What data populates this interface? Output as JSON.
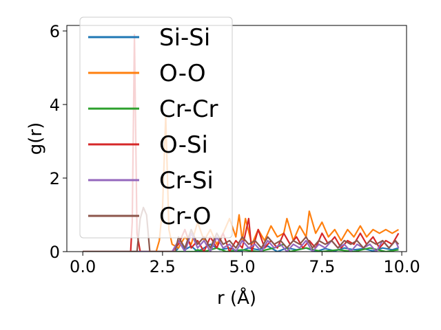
{
  "chart_data": {
    "type": "line",
    "title": "",
    "xlabel": "r (Å)",
    "ylabel": "g(r)",
    "xlim": [
      -0.5,
      10.15
    ],
    "ylim": [
      0,
      6.15
    ],
    "x_ticks": [
      0.0,
      2.5,
      5.0,
      7.5,
      10.0
    ],
    "x_tick_labels": [
      "0.0",
      "2.5",
      "5.0",
      "7.5",
      "10.0"
    ],
    "y_ticks": [
      0,
      2,
      4,
      6
    ],
    "y_tick_labels": [
      "0",
      "2",
      "4",
      "6"
    ],
    "grid": false,
    "legend_position": "top-left",
    "series": [
      {
        "name": "Si-Si",
        "color": "#1f77b4",
        "points": [
          [
            0,
            0
          ],
          [
            2.9,
            0
          ],
          [
            3.0,
            0.1
          ],
          [
            3.1,
            0.25
          ],
          [
            3.2,
            0.05
          ],
          [
            3.4,
            0.15
          ],
          [
            3.6,
            0.0
          ],
          [
            3.8,
            0.1
          ],
          [
            4.0,
            0.2
          ],
          [
            4.3,
            0.05
          ],
          [
            4.6,
            0.1
          ],
          [
            4.9,
            0.0
          ],
          [
            5.2,
            0.1
          ],
          [
            5.5,
            0.05
          ],
          [
            5.8,
            0.15
          ],
          [
            6.1,
            0.0
          ],
          [
            6.4,
            0.1
          ],
          [
            6.7,
            0.05
          ],
          [
            7.0,
            0.1
          ],
          [
            7.3,
            0.0
          ],
          [
            7.6,
            0.08
          ],
          [
            7.9,
            0.02
          ],
          [
            8.2,
            0.1
          ],
          [
            8.5,
            0.05
          ],
          [
            8.8,
            0.08
          ],
          [
            9.1,
            0.02
          ],
          [
            9.4,
            0.1
          ],
          [
            9.7,
            0.05
          ],
          [
            9.9,
            0.1
          ]
        ]
      },
      {
        "name": "O-O",
        "color": "#ff7f0e",
        "points": [
          [
            0,
            0
          ],
          [
            2.3,
            0
          ],
          [
            2.4,
            0.3
          ],
          [
            2.5,
            1.2
          ],
          [
            2.6,
            3.7
          ],
          [
            2.7,
            0.6
          ],
          [
            2.8,
            0.2
          ],
          [
            3.0,
            0.1
          ],
          [
            3.2,
            0.4
          ],
          [
            3.4,
            0.2
          ],
          [
            3.6,
            0.8
          ],
          [
            3.8,
            0.3
          ],
          [
            4.0,
            0.6
          ],
          [
            4.2,
            0.2
          ],
          [
            4.4,
            0.5
          ],
          [
            4.6,
            0.9
          ],
          [
            4.8,
            0.4
          ],
          [
            4.9,
            1.0
          ],
          [
            5.0,
            0.3
          ],
          [
            5.1,
            0.9
          ],
          [
            5.3,
            0.2
          ],
          [
            5.5,
            0.6
          ],
          [
            5.7,
            0.3
          ],
          [
            5.9,
            0.7
          ],
          [
            6.1,
            0.4
          ],
          [
            6.3,
            0.5
          ],
          [
            6.4,
            0.9
          ],
          [
            6.6,
            0.3
          ],
          [
            6.8,
            0.7
          ],
          [
            7.0,
            0.4
          ],
          [
            7.1,
            1.1
          ],
          [
            7.3,
            0.5
          ],
          [
            7.5,
            0.8
          ],
          [
            7.7,
            0.4
          ],
          [
            7.9,
            0.6
          ],
          [
            8.1,
            0.3
          ],
          [
            8.3,
            0.6
          ],
          [
            8.5,
            0.4
          ],
          [
            8.7,
            0.7
          ],
          [
            8.9,
            0.4
          ],
          [
            9.1,
            0.6
          ],
          [
            9.3,
            0.5
          ],
          [
            9.5,
            0.6
          ],
          [
            9.7,
            0.5
          ],
          [
            9.9,
            0.6
          ]
        ]
      },
      {
        "name": "Cr-Cr",
        "color": "#2ca02c",
        "points": [
          [
            0,
            0
          ],
          [
            3.5,
            0
          ],
          [
            3.6,
            0.05
          ],
          [
            3.8,
            0.0
          ],
          [
            4.2,
            0.1
          ],
          [
            4.5,
            0.0
          ],
          [
            5.0,
            0.05
          ],
          [
            5.5,
            0.0
          ],
          [
            6.0,
            0.1
          ],
          [
            6.3,
            0.2
          ],
          [
            6.5,
            0.0
          ],
          [
            7.0,
            0.1
          ],
          [
            7.5,
            0.0
          ],
          [
            8.0,
            0.05
          ],
          [
            8.5,
            0.0
          ],
          [
            9.0,
            0.1
          ],
          [
            9.5,
            0.0
          ],
          [
            9.9,
            0.05
          ]
        ]
      },
      {
        "name": "O-Si",
        "color": "#d62728",
        "points": [
          [
            0,
            0
          ],
          [
            1.5,
            0
          ],
          [
            1.55,
            0.8
          ],
          [
            1.62,
            5.9
          ],
          [
            1.7,
            0.5
          ],
          [
            1.8,
            0.0
          ],
          [
            2.8,
            0.0
          ],
          [
            3.0,
            0.2
          ],
          [
            3.2,
            0.6
          ],
          [
            3.4,
            0.1
          ],
          [
            3.6,
            0.3
          ],
          [
            3.8,
            0.0
          ],
          [
            4.0,
            0.4
          ],
          [
            4.2,
            0.1
          ],
          [
            4.4,
            0.5
          ],
          [
            4.6,
            0.0
          ],
          [
            4.8,
            0.3
          ],
          [
            5.0,
            0.1
          ],
          [
            5.2,
            0.9
          ],
          [
            5.3,
            0.0
          ],
          [
            5.5,
            0.6
          ],
          [
            5.7,
            0.1
          ],
          [
            5.9,
            0.3
          ],
          [
            6.1,
            0.1
          ],
          [
            6.3,
            0.5
          ],
          [
            6.5,
            0.2
          ],
          [
            6.7,
            0.4
          ],
          [
            6.9,
            0.1
          ],
          [
            7.1,
            0.3
          ],
          [
            7.3,
            0.1
          ],
          [
            7.5,
            0.5
          ],
          [
            7.7,
            0.2
          ],
          [
            7.9,
            0.4
          ],
          [
            8.1,
            0.1
          ],
          [
            8.3,
            0.3
          ],
          [
            8.5,
            0.2
          ],
          [
            8.7,
            0.5
          ],
          [
            8.9,
            0.2
          ],
          [
            9.1,
            0.4
          ],
          [
            9.3,
            0.1
          ],
          [
            9.5,
            0.3
          ],
          [
            9.7,
            0.2
          ],
          [
            9.9,
            0.5
          ]
        ]
      },
      {
        "name": "Cr-Si",
        "color": "#9467bd",
        "points": [
          [
            0,
            0
          ],
          [
            2.8,
            0
          ],
          [
            3.0,
            0.3
          ],
          [
            3.2,
            0.0
          ],
          [
            3.4,
            0.5
          ],
          [
            3.6,
            0.1
          ],
          [
            3.8,
            0.3
          ],
          [
            4.0,
            0.0
          ],
          [
            4.2,
            0.4
          ],
          [
            4.4,
            0.1
          ],
          [
            4.6,
            0.2
          ],
          [
            4.8,
            0.0
          ],
          [
            5.0,
            0.3
          ],
          [
            5.2,
            0.1
          ],
          [
            5.4,
            0.2
          ],
          [
            5.6,
            0.0
          ],
          [
            5.8,
            0.3
          ],
          [
            6.0,
            0.1
          ],
          [
            6.2,
            0.2
          ],
          [
            6.4,
            0.0
          ],
          [
            6.6,
            0.2
          ],
          [
            6.8,
            0.1
          ],
          [
            7.0,
            0.3
          ],
          [
            7.2,
            0.0
          ],
          [
            7.4,
            0.2
          ],
          [
            7.6,
            0.1
          ],
          [
            7.8,
            0.3
          ],
          [
            8.0,
            0.1
          ],
          [
            8.2,
            0.2
          ],
          [
            8.4,
            0.0
          ],
          [
            8.6,
            0.2
          ],
          [
            8.8,
            0.1
          ],
          [
            9.0,
            0.2
          ],
          [
            9.2,
            0.0
          ],
          [
            9.4,
            0.3
          ],
          [
            9.6,
            0.1
          ],
          [
            9.8,
            0.3
          ],
          [
            9.9,
            0.1
          ]
        ]
      },
      {
        "name": "Cr-O",
        "color": "#8c564b",
        "points": [
          [
            0,
            0
          ],
          [
            1.7,
            0
          ],
          [
            1.8,
            0.9
          ],
          [
            1.9,
            1.2
          ],
          [
            2.0,
            1.0
          ],
          [
            2.1,
            0.0
          ],
          [
            2.9,
            0.0
          ],
          [
            3.0,
            0.4
          ],
          [
            3.2,
            0.1
          ],
          [
            3.4,
            0.6
          ],
          [
            3.6,
            0.2
          ],
          [
            3.8,
            0.4
          ],
          [
            4.0,
            0.1
          ],
          [
            4.2,
            0.5
          ],
          [
            4.4,
            0.2
          ],
          [
            4.6,
            0.3
          ],
          [
            4.8,
            0.1
          ],
          [
            5.0,
            0.4
          ],
          [
            5.2,
            0.2
          ],
          [
            5.4,
            0.3
          ],
          [
            5.6,
            0.1
          ],
          [
            5.8,
            0.4
          ],
          [
            6.0,
            0.2
          ],
          [
            6.2,
            0.3
          ],
          [
            6.4,
            0.1
          ],
          [
            6.6,
            0.3
          ],
          [
            6.8,
            0.2
          ],
          [
            7.0,
            0.4
          ],
          [
            7.2,
            0.1
          ],
          [
            7.4,
            0.3
          ],
          [
            7.6,
            0.2
          ],
          [
            7.8,
            0.3
          ],
          [
            8.0,
            0.1
          ],
          [
            8.2,
            0.3
          ],
          [
            8.4,
            0.2
          ],
          [
            8.6,
            0.3
          ],
          [
            8.8,
            0.1
          ],
          [
            9.0,
            0.3
          ],
          [
            9.2,
            0.2
          ],
          [
            9.4,
            0.3
          ],
          [
            9.6,
            0.1
          ],
          [
            9.8,
            0.3
          ],
          [
            9.9,
            0.2
          ]
        ]
      }
    ]
  }
}
